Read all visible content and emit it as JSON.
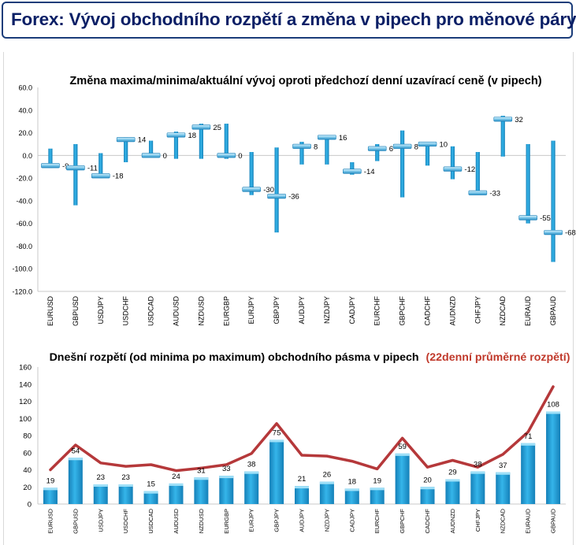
{
  "page": {
    "title": "Forex: Vývoj obchodního rozpětí a změna v pipech pro měnové páry"
  },
  "chart_data": [
    {
      "type": "range",
      "title": "Změna maxima/minima/aktuální vývoj oproti předchozí denní uzavírací ceně (v pipech)",
      "categories": [
        "EURUSD",
        "GBPUSD",
        "USDJPY",
        "USDCHF",
        "USDCAD",
        "AUDUSD",
        "NZDUSD",
        "EURGBP",
        "EURJPY",
        "GBPJPY",
        "AUDJPY",
        "NZDJPY",
        "CADJPY",
        "EURCHF",
        "GBPCHF",
        "CADCHF",
        "AUDNZD",
        "CHFJPY",
        "NZDCAD",
        "EURAUD",
        "GBPAUD"
      ],
      "high": [
        6,
        10,
        2,
        16,
        13,
        21,
        28,
        28,
        3,
        7,
        12,
        17,
        -6,
        10,
        22,
        12,
        8,
        3,
        35,
        10,
        13
      ],
      "low": [
        -11,
        -44,
        -20,
        -6,
        -1,
        -3,
        -3,
        -3,
        -35,
        -68,
        -8,
        -8,
        -17,
        -5,
        -37,
        -9,
        -21,
        -34,
        -1,
        -60,
        -94
      ],
      "current": [
        -9,
        -11,
        -18,
        14,
        0,
        18,
        25,
        0,
        -30,
        -36,
        8,
        16,
        -14,
        6,
        8,
        10,
        -12,
        -33,
        32,
        -55,
        -68
      ],
      "value_labels": [
        "-9",
        "-11",
        "-18",
        "14",
        "0",
        "18",
        "25",
        "0",
        "-30",
        "-36",
        "8",
        "16",
        "-14",
        "6",
        "8",
        "10",
        "-12",
        "-33",
        "32",
        "-55",
        "-68"
      ],
      "ylim": [
        -120,
        60
      ],
      "yticks": [
        "60.0",
        "40.0",
        "20.0",
        "0.0",
        "-20.0",
        "-40.0",
        "-60.0",
        "-80.0",
        "-100.0",
        "-120.0"
      ],
      "grid": false,
      "colors": {
        "range": "#1a9fd8",
        "marker": "#7cc7ea",
        "marker_edge": "#1a7fb8",
        "text": "#000000"
      }
    },
    {
      "type": "bar+line",
      "title": "Dnešní rozpětí (od minima po maximum) obchodního pásma v pipech",
      "title_highlight": "(22denní průměrné rozpětí)",
      "categories": [
        "EURUSD",
        "GBPUSD",
        "USDJPY",
        "USDCHF",
        "USDCAD",
        "AUDUSD",
        "NZDUSD",
        "EURGBP",
        "EURJPY",
        "GBPJPY",
        "AUDJPY",
        "NZDJPY",
        "CADJPY",
        "EURCHF",
        "GBPCHF",
        "CADCHF",
        "AUDNZD",
        "CHFJPY",
        "NZDCAD",
        "EURAUD",
        "GBPAUD"
      ],
      "values": [
        19,
        54,
        23,
        23,
        15,
        24,
        31,
        33,
        38,
        75,
        21,
        26,
        18,
        19,
        59,
        20,
        29,
        38,
        37,
        71,
        108
      ],
      "value_labels": [
        "19",
        "54",
        "23",
        "23",
        "15",
        "24",
        "31",
        "33",
        "38",
        "75",
        "21",
        "26",
        "18",
        "19",
        "59",
        "20",
        "29",
        "38",
        "37",
        "71",
        "108"
      ],
      "average_22d": [
        40,
        69,
        48,
        44,
        46,
        39,
        42,
        46,
        59,
        94,
        57,
        56,
        50,
        41,
        77,
        43,
        51,
        43,
        58,
        84,
        137
      ],
      "ylim": [
        0,
        160
      ],
      "yticks": [
        "160",
        "140",
        "120",
        "100",
        "80",
        "60",
        "40",
        "20",
        "0"
      ],
      "grid": false,
      "colors": {
        "bar": "#1a9fd8",
        "bar_light": "#7fd0f2",
        "line": "#b5383a",
        "title_highlight": "#c0392b",
        "text": "#000000"
      }
    }
  ]
}
